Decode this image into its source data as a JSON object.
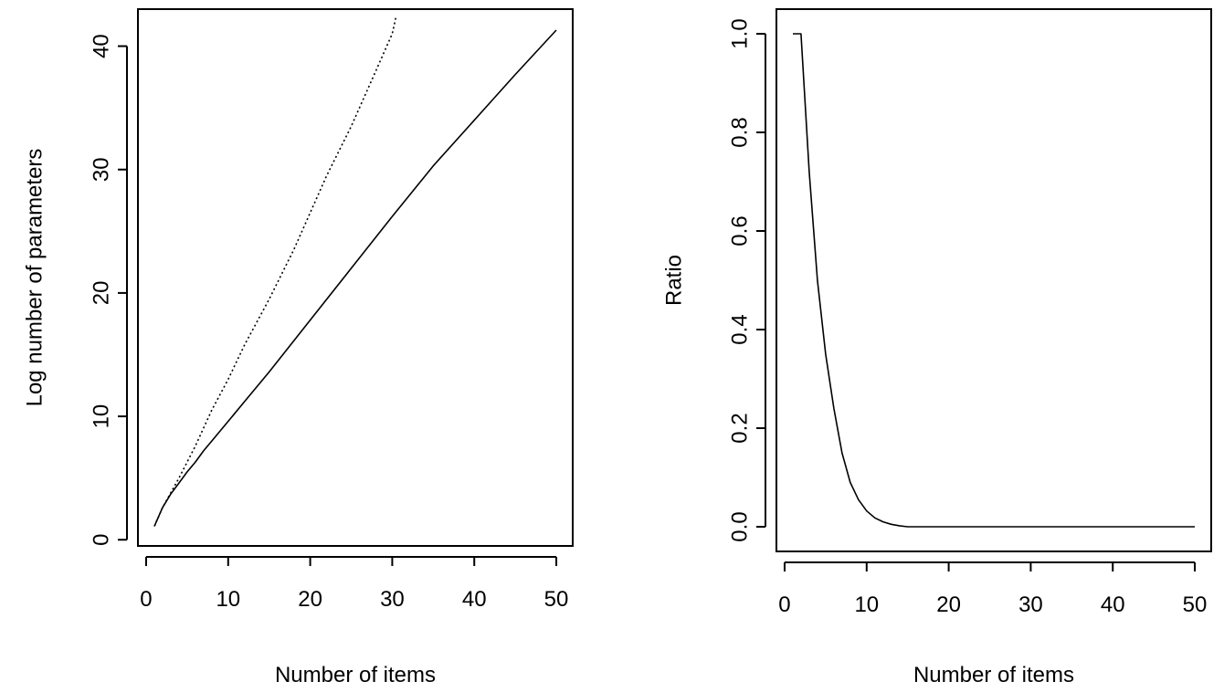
{
  "chart_data": [
    {
      "type": "line",
      "title": "",
      "xlabel": "Number of items",
      "ylabel": "Log number of parameters",
      "xlim": [
        -1,
        52
      ],
      "ylim": [
        -0.5,
        43
      ],
      "x_ticks": [
        0,
        10,
        20,
        30,
        40,
        50
      ],
      "y_ticks": [
        0,
        10,
        20,
        30,
        40
      ],
      "grid": false,
      "legend": "none",
      "series": [
        {
          "line_style": "solid",
          "points": [
            [
              1,
              1.1
            ],
            [
              2,
              2.6
            ],
            [
              3,
              3.7
            ],
            [
              4,
              4.6
            ],
            [
              5,
              5.5
            ],
            [
              6,
              6.3
            ],
            [
              7,
              7.2
            ],
            [
              8,
              8.0
            ],
            [
              10,
              9.6
            ],
            [
              12,
              11.2
            ],
            [
              15,
              13.6
            ],
            [
              20,
              17.8
            ],
            [
              25,
              22.0
            ],
            [
              30,
              26.2
            ],
            [
              35,
              30.3
            ],
            [
              40,
              34.0
            ],
            [
              45,
              37.7
            ],
            [
              50,
              41.3
            ]
          ]
        },
        {
          "line_style": "dotted",
          "points": [
            [
              1,
              1.1
            ],
            [
              2,
              2.6
            ],
            [
              3,
              3.8
            ],
            [
              4,
              5.0
            ],
            [
              5,
              6.3
            ],
            [
              6,
              7.6
            ],
            [
              8,
              10.5
            ],
            [
              10,
              13.0
            ],
            [
              12,
              15.8
            ],
            [
              15,
              19.5
            ],
            [
              18,
              23.5
            ],
            [
              20,
              26.5
            ],
            [
              22,
              29.5
            ],
            [
              25,
              33.5
            ],
            [
              28,
              38.0
            ],
            [
              30,
              41.0
            ],
            [
              30.5,
              42.5
            ]
          ]
        }
      ]
    },
    {
      "type": "line",
      "title": "",
      "xlabel": "Number of items",
      "ylabel": "Ratio",
      "xlim": [
        -1,
        52
      ],
      "ylim": [
        -0.05,
        1.05
      ],
      "x_ticks": [
        0,
        10,
        20,
        30,
        40,
        50
      ],
      "y_ticks": [
        "0.0",
        "0.2",
        "0.4",
        "0.6",
        "0.8",
        "1.0"
      ],
      "grid": false,
      "legend": "none",
      "series": [
        {
          "line_style": "solid",
          "points": [
            [
              1,
              1.0
            ],
            [
              2,
              1.0
            ],
            [
              3,
              0.72
            ],
            [
              4,
              0.5
            ],
            [
              5,
              0.35
            ],
            [
              6,
              0.24
            ],
            [
              7,
              0.15
            ],
            [
              8,
              0.09
            ],
            [
              9,
              0.055
            ],
            [
              10,
              0.032
            ],
            [
              11,
              0.018
            ],
            [
              12,
              0.01
            ],
            [
              13,
              0.005
            ],
            [
              14,
              0.002
            ],
            [
              15,
              0.0
            ],
            [
              50,
              0.0
            ]
          ]
        }
      ]
    }
  ]
}
